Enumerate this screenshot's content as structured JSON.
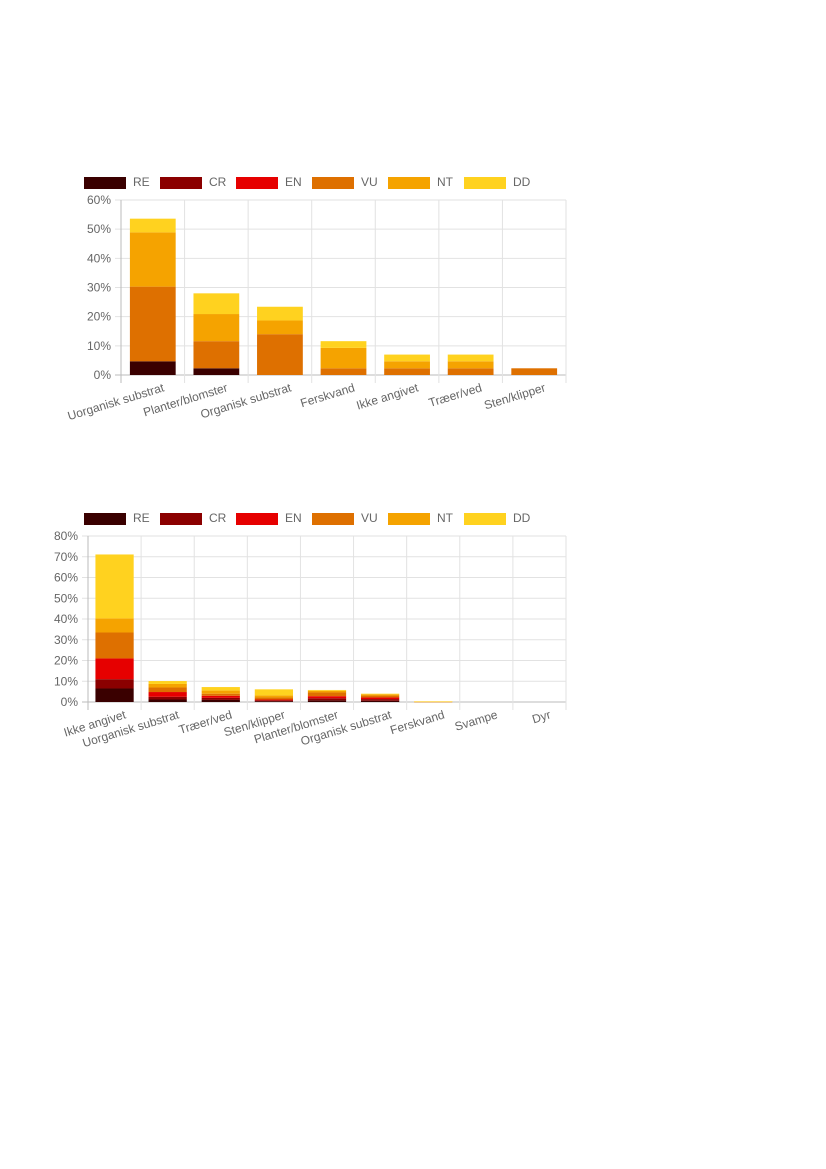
{
  "legend_labels": [
    "RE",
    "CR",
    "EN",
    "VU",
    "NT",
    "DD"
  ],
  "colors": [
    "#3a0000",
    "#8b0000",
    "#e60000",
    "#de7000",
    "#f5a300",
    "#ffd21f"
  ],
  "chart_data": [
    {
      "type": "bar",
      "stacked": true,
      "categories": [
        "Uorganisk substrat",
        "Planter/blomster",
        "Organisk substrat",
        "Ferskvand",
        "Ikke angivet",
        "Træer/ved",
        "Sten/klipper"
      ],
      "ylim": [
        0,
        60
      ],
      "yticks": [
        0,
        10,
        20,
        30,
        40,
        50,
        60
      ],
      "ytick_labels": [
        "0%",
        "10%",
        "20%",
        "30%",
        "40%",
        "50%",
        "60%"
      ],
      "legend_position": "top",
      "grid": true,
      "series": [
        {
          "name": "RE",
          "values": [
            4.7,
            2.3,
            0,
            0,
            0,
            0,
            0
          ]
        },
        {
          "name": "CR",
          "values": [
            0,
            0,
            0,
            0,
            0,
            0,
            0
          ]
        },
        {
          "name": "EN",
          "values": [
            0,
            0,
            0,
            0,
            0,
            0,
            0
          ]
        },
        {
          "name": "VU",
          "values": [
            25.6,
            9.3,
            14.0,
            2.3,
            2.3,
            2.3,
            2.3
          ]
        },
        {
          "name": "NT",
          "values": [
            18.6,
            9.3,
            4.7,
            7.0,
            2.4,
            2.4,
            0
          ]
        },
        {
          "name": "DD",
          "values": [
            4.7,
            7.1,
            4.7,
            2.3,
            2.3,
            2.3,
            0
          ]
        }
      ]
    },
    {
      "type": "bar",
      "stacked": true,
      "categories": [
        "Ikke angivet",
        "Uorganisk substrat",
        "Træer/ved",
        "Sten/klipper",
        "Planter/blomster",
        "Organisk substrat",
        "Ferskvand",
        "Svampe",
        "Dyr"
      ],
      "ylim": [
        0,
        80
      ],
      "yticks": [
        0,
        10,
        20,
        30,
        40,
        50,
        60,
        70,
        80
      ],
      "ytick_labels": [
        "0%",
        "10%",
        "20%",
        "30%",
        "40%",
        "50%",
        "60%",
        "70%",
        "80%"
      ],
      "legend_position": "top",
      "grid": true,
      "series": [
        {
          "name": "RE",
          "values": [
            6.5,
            1.2,
            1.0,
            0.4,
            0.8,
            0.6,
            0,
            0,
            0
          ]
        },
        {
          "name": "CR",
          "values": [
            4.5,
            1.3,
            1.0,
            0.4,
            1.0,
            0.8,
            0,
            0,
            0
          ]
        },
        {
          "name": "EN",
          "values": [
            10.0,
            2.3,
            1.0,
            0.4,
            1.0,
            0.8,
            0,
            0,
            0
          ]
        },
        {
          "name": "VU",
          "values": [
            12.5,
            2.2,
            1.0,
            1.0,
            1.8,
            0.9,
            0.1,
            0,
            0
          ]
        },
        {
          "name": "NT",
          "values": [
            6.8,
            1.7,
            1.5,
            1.0,
            0.8,
            0.6,
            0.1,
            0,
            0
          ]
        },
        {
          "name": "DD",
          "values": [
            30.8,
            1.4,
            1.7,
            2.9,
            0.4,
            0.3,
            0.1,
            0,
            0
          ]
        }
      ]
    }
  ]
}
